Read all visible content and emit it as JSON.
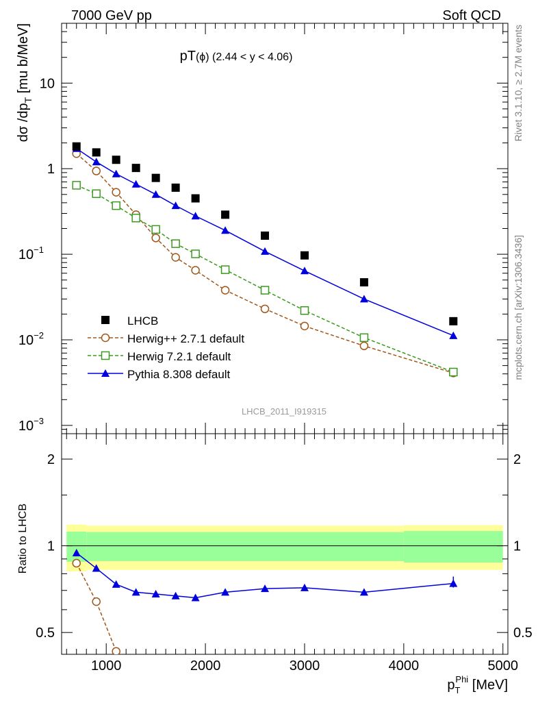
{
  "header": {
    "left": "7000 GeV pp",
    "right": "Soft QCD",
    "side_top": "Rivet 3.1.10, ≥ 2.7M events",
    "side_bottom": "mcplots.cern.ch [arXiv:1306.3436]",
    "watermark": "LHCB_2011_I919315"
  },
  "chart_data": [
    {
      "type": "line",
      "title_main": "pT",
      "title_sub": "(ϕ) (2.44 < y < 4.06)",
      "ylabel": "dσ /dp_T [mu b/MeV]",
      "yscale": "log",
      "ylim": [
        0.0008,
        50
      ],
      "xlim": [
        550,
        5050
      ],
      "y_ticks": [
        {
          "v": 0.001,
          "label": "10",
          "exp": "−3"
        },
        {
          "v": 0.01,
          "label": "10",
          "exp": "−2"
        },
        {
          "v": 0.1,
          "label": "10",
          "exp": "−1"
        },
        {
          "v": 1,
          "label": "1",
          "exp": ""
        },
        {
          "v": 10,
          "label": "10",
          "exp": ""
        }
      ],
      "series": [
        {
          "name": "LHCB",
          "color": "#000000",
          "marker": "square-filled",
          "dash": "none",
          "draw_line": false,
          "x": [
            700,
            900,
            1100,
            1300,
            1500,
            1700,
            1900,
            2200,
            2600,
            3000,
            3600,
            4500
          ],
          "y": [
            1.82,
            1.55,
            1.27,
            1.02,
            0.78,
            0.6,
            0.45,
            0.29,
            0.165,
            0.097,
            0.047,
            0.0165
          ]
        },
        {
          "name": "Herwig++ 2.7.1 default",
          "color": "#a0561a",
          "marker": "circle-open",
          "dash": "5,3",
          "draw_line": true,
          "x": [
            700,
            900,
            1100,
            1300,
            1500,
            1700,
            1900,
            2200,
            2600,
            3000,
            3600,
            4500
          ],
          "y": [
            1.5,
            0.94,
            0.53,
            0.29,
            0.155,
            0.092,
            0.065,
            0.038,
            0.023,
            0.0145,
            0.0085,
            0.0041
          ]
        },
        {
          "name": "Herwig 7.2.1 default",
          "color": "#3b9a1e",
          "marker": "square-open",
          "dash": "5,3",
          "draw_line": true,
          "x": [
            700,
            900,
            1100,
            1300,
            1500,
            1700,
            1900,
            2200,
            2600,
            3000,
            3600,
            4500
          ],
          "y": [
            0.64,
            0.51,
            0.37,
            0.265,
            0.195,
            0.133,
            0.101,
            0.066,
            0.038,
            0.022,
            0.0106,
            0.0042
          ]
        },
        {
          "name": "Pythia 8.308 default",
          "color": "#0000dd",
          "marker": "triangle-filled",
          "dash": "none",
          "draw_line": true,
          "x": [
            700,
            900,
            1100,
            1300,
            1500,
            1700,
            1900,
            2200,
            2600,
            3000,
            3600,
            4500
          ],
          "y": [
            1.72,
            1.2,
            0.87,
            0.66,
            0.5,
            0.37,
            0.28,
            0.19,
            0.108,
            0.064,
            0.03,
            0.0112
          ]
        }
      ]
    },
    {
      "type": "line",
      "ylabel": "Ratio to LHCB",
      "xlabel": "p",
      "xlabel_sub": "T",
      "xlabel_sup": "Phi",
      "xlabel_unit": " [MeV]",
      "yscale": "log",
      "ylim": [
        0.42,
        2.45
      ],
      "xlim": [
        550,
        5050
      ],
      "x_ticks": [
        1000,
        2000,
        3000,
        4000,
        5000
      ],
      "y_ticks": [
        0.5,
        1,
        2
      ],
      "bands": {
        "yellow_color": "#ffff99",
        "green_color": "#99ff99",
        "segments": [
          {
            "x0": 600,
            "x1": 800,
            "y_lo": 0.815,
            "y_hi": 1.185,
            "g_lo": 0.88,
            "g_hi": 1.12
          },
          {
            "x0": 800,
            "x1": 4000,
            "y_lo": 0.825,
            "y_hi": 1.175,
            "g_lo": 0.885,
            "g_hi": 1.115
          },
          {
            "x0": 4000,
            "x1": 5000,
            "y_lo": 0.825,
            "y_hi": 1.18,
            "g_lo": 0.875,
            "g_hi": 1.125
          }
        ]
      },
      "series": [
        {
          "name": "Herwig++ 2.7.1 default",
          "color": "#a0561a",
          "marker": "circle-open",
          "dash": "5,3",
          "x": [
            700,
            900,
            1100
          ],
          "y": [
            0.87,
            0.64,
            0.43
          ]
        },
        {
          "name": "Pythia 8.308 default",
          "color": "#0000dd",
          "marker": "triangle-filled",
          "dash": "none",
          "x": [
            700,
            900,
            1100,
            1300,
            1500,
            1700,
            1900,
            2200,
            2600,
            3000,
            3600,
            4500
          ],
          "y": [
            0.945,
            0.835,
            0.735,
            0.69,
            0.68,
            0.67,
            0.66,
            0.69,
            0.71,
            0.715,
            0.69,
            0.74
          ]
        }
      ]
    }
  ]
}
